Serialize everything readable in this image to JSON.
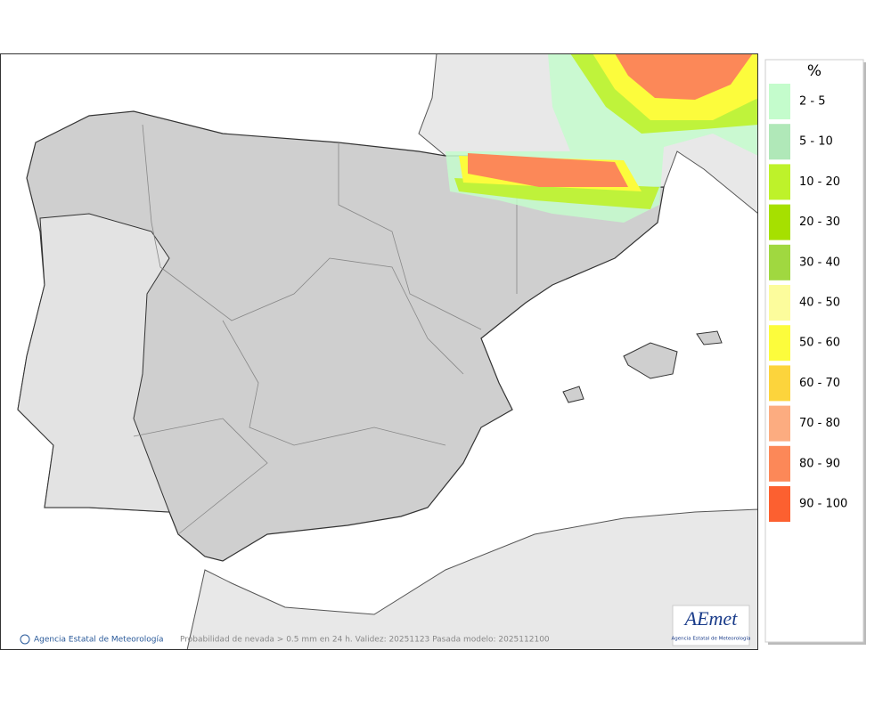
{
  "legend": {
    "title": "%",
    "items": [
      {
        "label": "2 - 5",
        "color": "#c4fccc"
      },
      {
        "label": "5 - 10",
        "color": "#b0e8b8"
      },
      {
        "label": "10 - 20",
        "color": "#bef22a"
      },
      {
        "label": "20 - 30",
        "color": "#a6e000"
      },
      {
        "label": "30 - 40",
        "color": "#a0d840"
      },
      {
        "label": "40 - 50",
        "color": "#fcfc9c"
      },
      {
        "label": "50 - 60",
        "color": "#fcfc3c"
      },
      {
        "label": "60 - 70",
        "color": "#fcd43c"
      },
      {
        "label": "70 - 80",
        "color": "#fcac80"
      },
      {
        "label": "80 - 90",
        "color": "#fc8858"
      },
      {
        "label": "90 - 100",
        "color": "#fc6030"
      }
    ]
  },
  "map": {
    "credit": "Agencia Estatal de Meteorología",
    "caption": "Probabilidad de nevada > 0.5 mm en 24 h. Validez: 20251123 Pasada modelo: 2025112100",
    "logo": "AEmet",
    "logo_subtitle": "Agencia Estatal de Meteorología"
  }
}
